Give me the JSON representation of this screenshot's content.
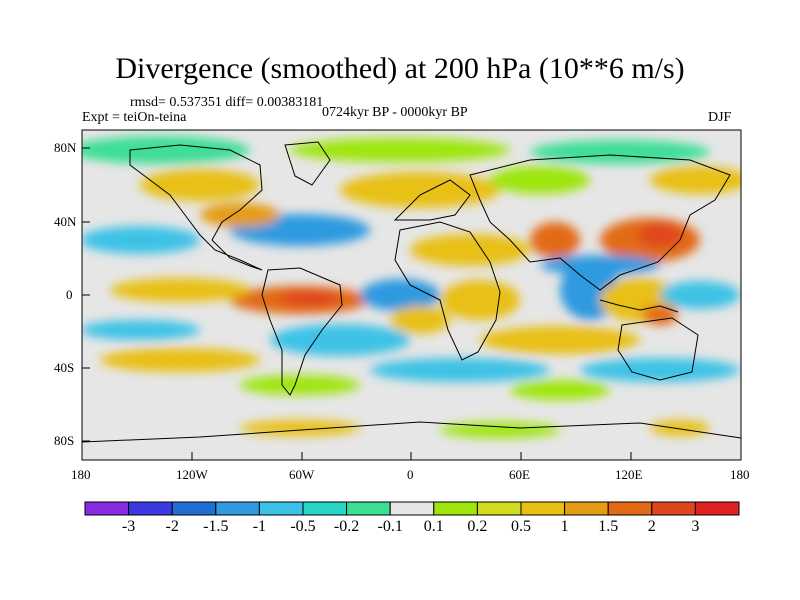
{
  "title": "Divergence (smoothed) at 200 hPa (10**6 m/s)",
  "stats": "rmsd= 0.537351 diff= 0.00383181",
  "experiment": "Expt = teiOn-teina",
  "period": "0724kyr BP - 0000kyr BP",
  "season": "DJF",
  "lat_ticks": [
    "80N",
    "40N",
    "0",
    "40S",
    "80S"
  ],
  "lon_ticks": [
    "180",
    "120W",
    "60W",
    "0",
    "60E",
    "120E",
    "180"
  ],
  "colorbar": {
    "labels": [
      "-3",
      "-2",
      "-1.5",
      "-1",
      "-0.5",
      "-0.2",
      "-0.1",
      "0.1",
      "0.2",
      "0.5",
      "1",
      "1.5",
      "2",
      "3"
    ],
    "colors": [
      "#8a2be2",
      "#3a3ae0",
      "#1f6fd6",
      "#2f9ae0",
      "#3cc2e6",
      "#26d4c8",
      "#3cde96",
      "#e6e6e6",
      "#9ee60a",
      "#d2dc1e",
      "#e8c014",
      "#e49c14",
      "#e26a14",
      "#e0461e",
      "#e22222"
    ]
  }
}
